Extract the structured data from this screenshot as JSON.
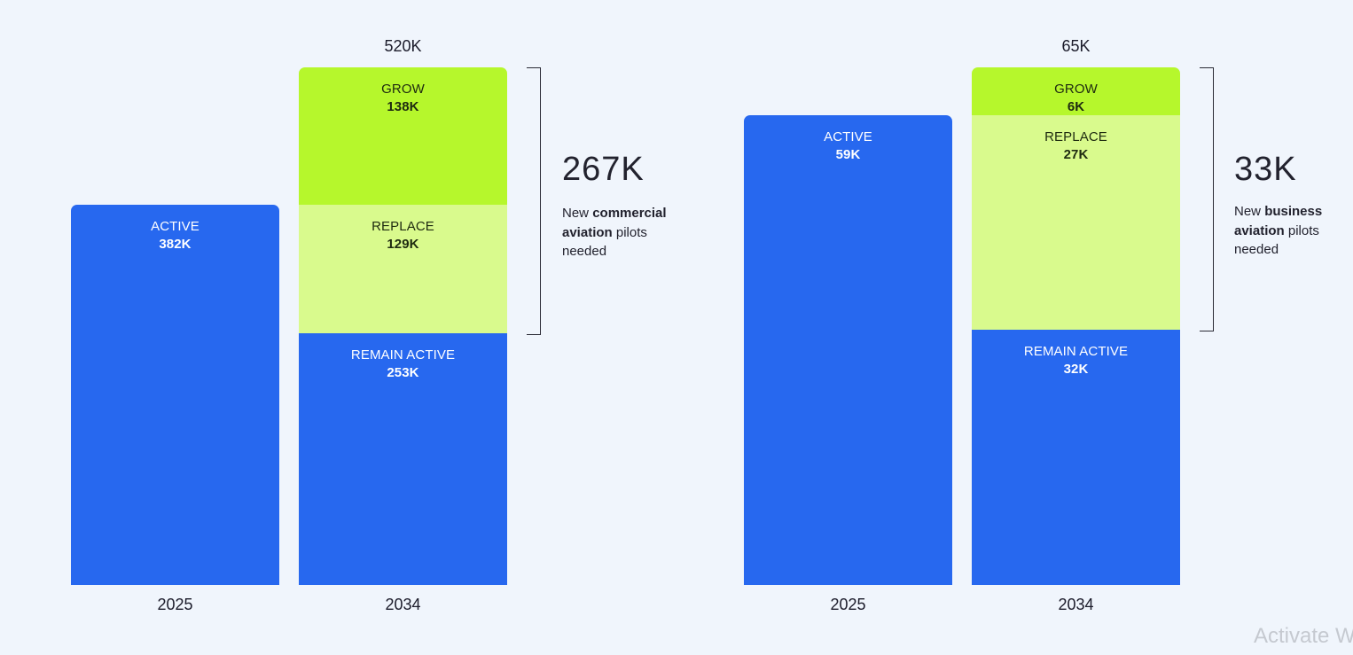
{
  "chart_data": [
    {
      "type": "bar",
      "stacked": true,
      "categories": [
        "2025",
        "2034"
      ],
      "bars": [
        {
          "category": "2025",
          "total": "",
          "segments": [
            {
              "name": "ACTIVE",
              "value": 382,
              "label": "382K",
              "color": "#2768ef"
            }
          ]
        },
        {
          "category": "2034",
          "total": "520K",
          "segments": [
            {
              "name": "REMAIN ACTIVE",
              "value": 253,
              "label": "253K",
              "color": "#2768ef"
            },
            {
              "name": "REPLACE",
              "value": 129,
              "label": "129K",
              "color": "#d9fa8d"
            },
            {
              "name": "GROW",
              "value": 138,
              "label": "138K",
              "color": "#b6f72c"
            }
          ]
        }
      ],
      "ylim": [
        0,
        520
      ],
      "callout": {
        "value": "267K",
        "text_pre": "New ",
        "text_bold": "commercial aviation",
        "text_post": " pilots needed"
      }
    },
    {
      "type": "bar",
      "stacked": true,
      "categories": [
        "2025",
        "2034"
      ],
      "bars": [
        {
          "category": "2025",
          "total": "",
          "segments": [
            {
              "name": "ACTIVE",
              "value": 59,
              "label": "59K",
              "color": "#2768ef"
            }
          ]
        },
        {
          "category": "2034",
          "total": "65K",
          "segments": [
            {
              "name": "REMAIN ACTIVE",
              "value": 32,
              "label": "32K",
              "color": "#2768ef"
            },
            {
              "name": "REPLACE",
              "value": 27,
              "label": "27K",
              "color": "#d9fa8d"
            },
            {
              "name": "GROW",
              "value": 6,
              "label": "6K",
              "color": "#b6f72c"
            }
          ]
        }
      ],
      "ylim": [
        0,
        65
      ],
      "callout": {
        "value": "33K",
        "text_pre": "New ",
        "text_bold": "business aviation",
        "text_post": " pilots needed"
      }
    }
  ],
  "watermark": "Activate W"
}
